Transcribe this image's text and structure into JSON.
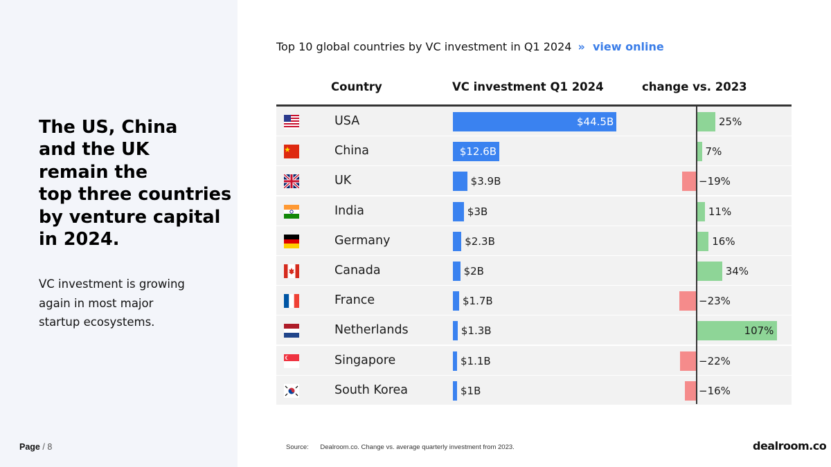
{
  "left": {
    "headline_lines": [
      "The US, China",
      "and the UK",
      "remain the",
      "top three countries",
      "by venture capital",
      "in 2024."
    ],
    "subtext_lines": [
      "VC investment is growing",
      "again in most major",
      "startup ecosystems."
    ],
    "page_label": "Page",
    "page_suffix": "/ 8"
  },
  "chart_title": {
    "text": "Top 10 global countries by VC investment in Q1 2024",
    "separator": "»",
    "link_text": "view online"
  },
  "colors": {
    "investment_bar": "#3a82f0",
    "positive_change": "#8ed597",
    "negative_change": "#f58b8b",
    "link": "#3a7de8"
  },
  "chart_data": {
    "type": "table",
    "title": "Top 10 global countries by VC investment in Q1 2024",
    "columns": [
      "Country",
      "VC investment Q1 2024",
      "change vs. 2023"
    ],
    "rows": [
      {
        "country": "USA",
        "flag": "us-flag-icon",
        "investment": 44.5,
        "investment_label": "$44.5B",
        "change": 25,
        "change_label": "25%"
      },
      {
        "country": "China",
        "flag": "cn-flag-icon",
        "investment": 12.6,
        "investment_label": "$12.6B",
        "change": 7,
        "change_label": "7%"
      },
      {
        "country": "UK",
        "flag": "gb-flag-icon",
        "investment": 3.9,
        "investment_label": "$3.9B",
        "change": -19,
        "change_label": "−19%"
      },
      {
        "country": "India",
        "flag": "in-flag-icon",
        "investment": 3,
        "investment_label": "$3B",
        "change": 11,
        "change_label": "11%"
      },
      {
        "country": "Germany",
        "flag": "de-flag-icon",
        "investment": 2.3,
        "investment_label": "$2.3B",
        "change": 16,
        "change_label": "16%"
      },
      {
        "country": "Canada",
        "flag": "ca-flag-icon",
        "investment": 2,
        "investment_label": "$2B",
        "change": 34,
        "change_label": "34%"
      },
      {
        "country": "France",
        "flag": "fr-flag-icon",
        "investment": 1.7,
        "investment_label": "$1.7B",
        "change": -23,
        "change_label": "−23%"
      },
      {
        "country": "Netherlands",
        "flag": "nl-flag-icon",
        "investment": 1.3,
        "investment_label": "$1.3B",
        "change": 107,
        "change_label": "107%"
      },
      {
        "country": "Singapore",
        "flag": "sg-flag-icon",
        "investment": 1.1,
        "investment_label": "$1.1B",
        "change": -22,
        "change_label": "−22%"
      },
      {
        "country": "South Korea",
        "flag": "kr-flag-icon",
        "investment": 1,
        "investment_label": "$1B",
        "change": -16,
        "change_label": "−16%"
      }
    ]
  },
  "footer": {
    "source_label": "Source:",
    "source_text": "Dealroom.co. Change vs. average quarterly investment from 2023.",
    "logo": "dealroom.co"
  }
}
